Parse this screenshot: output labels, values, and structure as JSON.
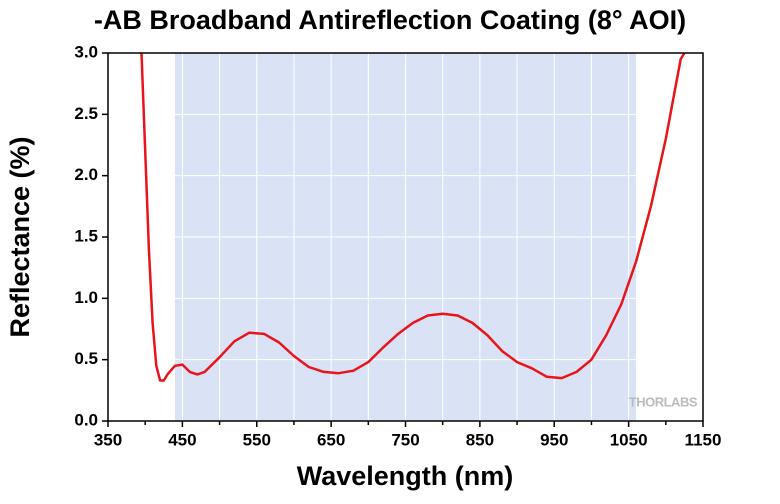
{
  "chart_data": {
    "type": "line",
    "title": "-AB Broadband Antireflection Coating (8° AOI)",
    "x_label": "Wavelength (nm)",
    "y_label": "Reflectance (%)",
    "watermark": "THORLABS",
    "shaded_range": [
      440,
      1060
    ],
    "shade_color": "#dae3f5",
    "xlim": [
      350,
      1150
    ],
    "ylim": [
      0,
      3.0
    ],
    "xticks": [
      350,
      450,
      550,
      650,
      750,
      850,
      950,
      1050,
      1150
    ],
    "xminor": [
      400,
      500,
      600,
      700,
      800,
      900,
      1000,
      1100
    ],
    "yticks": [
      {
        "value": 0,
        "label": "0.0"
      },
      0.5,
      {
        "value": 1,
        "label": "1.0"
      },
      1.5,
      {
        "value": 2,
        "label": "2.0"
      },
      2.5,
      {
        "value": 3,
        "label": "3.0"
      }
    ],
    "grid": true,
    "x": [
      395,
      400,
      405,
      410,
      415,
      420,
      425,
      430,
      440,
      450,
      460,
      470,
      480,
      500,
      520,
      540,
      560,
      580,
      600,
      620,
      640,
      660,
      680,
      700,
      720,
      740,
      760,
      780,
      800,
      820,
      840,
      860,
      880,
      900,
      920,
      940,
      960,
      980,
      1000,
      1020,
      1040,
      1060,
      1080,
      1100,
      1120,
      1125
    ],
    "series": [
      {
        "name": "Reflectance",
        "color": "#e8141b",
        "values": [
          3.0,
          2.2,
          1.4,
          0.8,
          0.45,
          0.33,
          0.33,
          0.38,
          0.45,
          0.46,
          0.4,
          0.38,
          0.4,
          0.52,
          0.65,
          0.72,
          0.71,
          0.64,
          0.53,
          0.44,
          0.4,
          0.39,
          0.41,
          0.48,
          0.6,
          0.71,
          0.8,
          0.86,
          0.875,
          0.86,
          0.8,
          0.7,
          0.57,
          0.48,
          0.43,
          0.36,
          0.35,
          0.4,
          0.5,
          0.7,
          0.95,
          1.3,
          1.75,
          2.3,
          2.95,
          3.0
        ]
      }
    ]
  }
}
